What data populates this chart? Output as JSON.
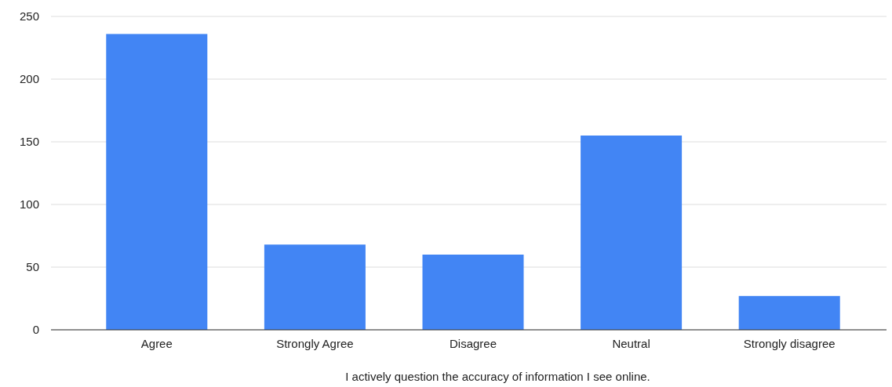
{
  "chart_data": {
    "type": "bar",
    "xlabel": "I actively question the accuracy of information I see online.",
    "categories": [
      "Agree",
      "Strongly Agree",
      "Disagree",
      "Neutral",
      "Strongly disagree"
    ],
    "values": [
      236,
      68,
      60,
      155,
      27
    ],
    "color": "#4285f4",
    "ylim": [
      0,
      250
    ],
    "yticks": [
      0,
      50,
      100,
      150,
      200,
      250
    ],
    "grid": "y"
  }
}
